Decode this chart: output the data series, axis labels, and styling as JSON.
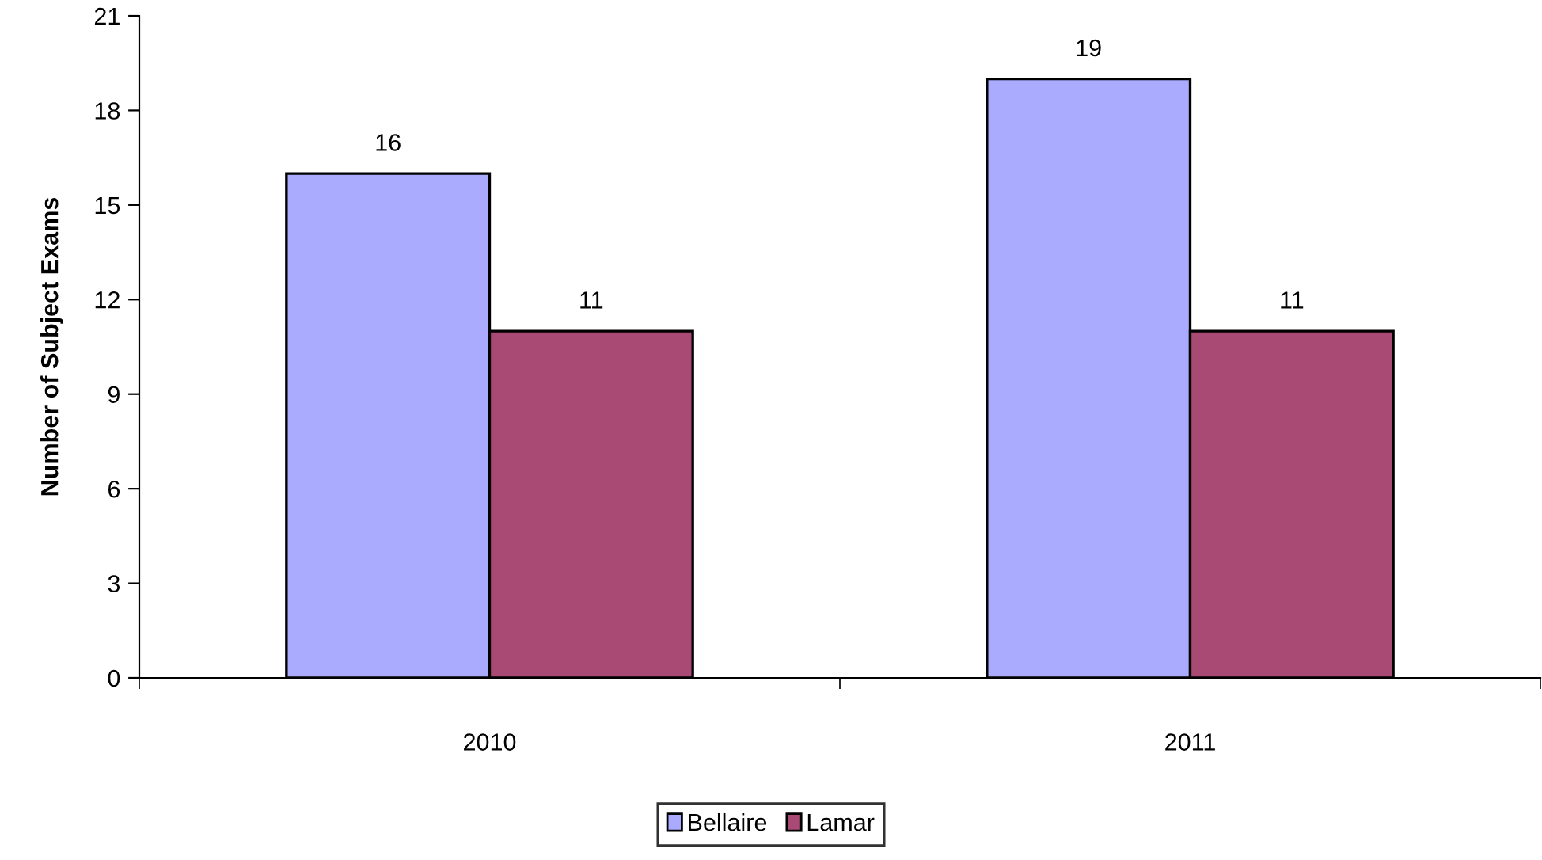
{
  "chart_data": {
    "type": "bar",
    "ylabel": "Number of Subject Exams",
    "categories": [
      "2010",
      "2011"
    ],
    "series": [
      {
        "name": "Bellaire",
        "color": "#aaaaff",
        "values": [
          16,
          19
        ]
      },
      {
        "name": "Lamar",
        "color": "#a94a74",
        "values": [
          11,
          11
        ]
      }
    ],
    "ylim": [
      0,
      21
    ],
    "yticks": [
      0,
      3,
      6,
      9,
      12,
      15,
      18,
      21
    ],
    "data_labels": true,
    "grid": false,
    "legend": "bottom"
  }
}
